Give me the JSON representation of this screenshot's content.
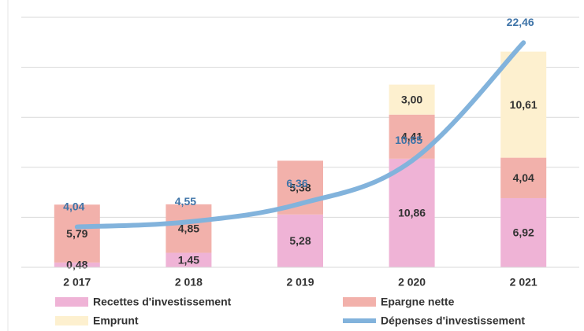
{
  "chart_data": {
    "type": "stacked_bar_line",
    "categories": [
      "2 017",
      "2 018",
      "2 019",
      "2 020",
      "2 021"
    ],
    "ylim": [
      0,
      25
    ],
    "yticks": [
      0,
      5,
      10,
      15,
      20,
      25
    ],
    "grid": true,
    "series": [
      {
        "name": "Recettes d'investissement",
        "color": "#efb3d6",
        "kind": "bar",
        "values": [
          0.48,
          1.45,
          5.28,
          10.86,
          6.92
        ],
        "value_labels": [
          "0,48",
          "1,45",
          "5,28",
          "10,86",
          "6,92"
        ]
      },
      {
        "name": "Epargne nette",
        "color": "#f2b1ab",
        "kind": "bar",
        "values": [
          5.79,
          4.85,
          5.38,
          4.41,
          4.04
        ],
        "value_labels": [
          "5,79",
          "4,85",
          "5,38",
          "4,41",
          "4,04"
        ]
      },
      {
        "name": "Emprunt",
        "color": "#fdf0cf",
        "kind": "bar",
        "values": [
          null,
          null,
          null,
          3.0,
          10.61
        ],
        "value_labels": [
          null,
          null,
          null,
          "3,00",
          "10,61"
        ]
      },
      {
        "name": "Dépenses d'investissement",
        "color": "#82b3dc",
        "kind": "line",
        "values": [
          4.04,
          4.55,
          6.36,
          10.65,
          22.46
        ],
        "value_labels": [
          "4,04",
          "4,55",
          "6,36",
          "10,65",
          "22,46"
        ]
      }
    ]
  }
}
